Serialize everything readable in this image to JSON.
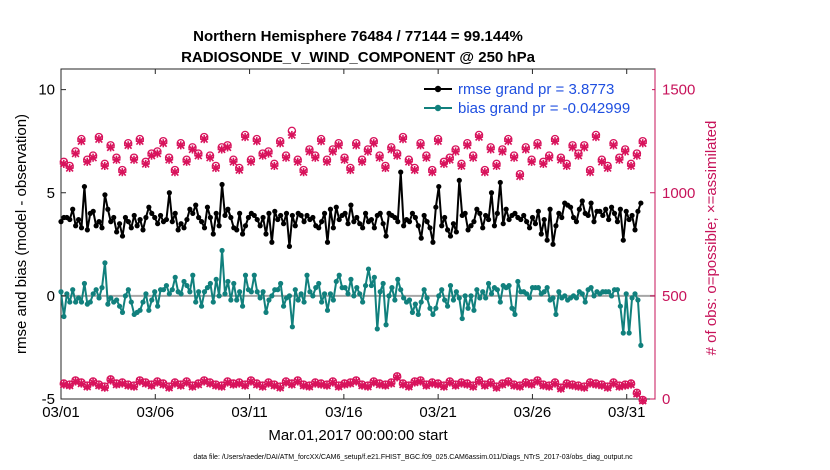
{
  "chart_data": {
    "type": "line",
    "title_line1": "Northern Hemisphere 76484 / 77144 = 99.144%",
    "title_line2": "RADIOSONDE_V_WIND_COMPONENT @ 250 hPa",
    "xlabel": "Mar.01,2017 00:00:00 start",
    "ylabel_left": "rmse and bias (model - observation)",
    "ylabel_right": "# of obs: o=possible; ×=assimilated",
    "footer": "data file: /Users/raeder/DAI/ATM_forcXX/CAM6_setup/f.e21.FHIST_BGC.f09_025.CAM6assim.011/Diags_NTrS_2017-03/obs_diag_output.nc",
    "xlim": [
      0,
      31.5
    ],
    "ylim_left": [
      -5,
      11
    ],
    "ylim_right": [
      0,
      1600
    ],
    "x_tick_values": [
      0,
      5,
      10,
      15,
      20,
      25,
      30
    ],
    "x_tick_labels": [
      "03/01",
      "03/06",
      "03/11",
      "03/16",
      "03/21",
      "03/26",
      "03/31"
    ],
    "y_left_ticks": [
      -5,
      0,
      5,
      10
    ],
    "y_left_tick_labels": [
      "-5",
      "0",
      "5",
      "10"
    ],
    "y_right_ticks": [
      0,
      500,
      1000,
      1500
    ],
    "y_right_tick_labels": [
      "0",
      "500",
      "1000",
      "1500"
    ],
    "colors": {
      "rmse": "#000000",
      "bias": "#11807d",
      "obs": "#d8135c",
      "zero_line": "#a6a6a6",
      "legend_text": "#1f4fe0",
      "right_axis": "#c7135a"
    },
    "legend": [
      {
        "name": "rmse grand pr = 3.8773",
        "series": "rmse"
      },
      {
        "name": "bias grand pr = -0.042999",
        "series": "bias"
      }
    ],
    "rmse": [
      3.6,
      3.8,
      3.8,
      3.7,
      4.2,
      3.4,
      3.7,
      3.3,
      5.3,
      3.2,
      4.0,
      4.1,
      3.4,
      3.6,
      3.3,
      4.9,
      4.2,
      3.6,
      3.8,
      3.1,
      3.5,
      2.9,
      3.8,
      3.6,
      3.3,
      3.9,
      3.4,
      3.7,
      3.2,
      3.8,
      4.3,
      4.0,
      3.8,
      3.5,
      3.9,
      3.6,
      3.7,
      5.0,
      3.6,
      4.0,
      3.2,
      3.5,
      3.3,
      3.7,
      4.2,
      4.0,
      4.4,
      3.8,
      3.6,
      3.3,
      4.3,
      3.8,
      3.0,
      4.0,
      3.4,
      5.4,
      3.9,
      4.2,
      3.8,
      3.3,
      3.2,
      4.0,
      3.0,
      3.4,
      3.8,
      4.0,
      3.9,
      3.7,
      3.4,
      3.8,
      3.0,
      4.0,
      2.6,
      4.1,
      3.7,
      3.9,
      3.5,
      4.0,
      2.4,
      3.9,
      3.4,
      4.0,
      3.9,
      3.6,
      3.9,
      3.7,
      3.8,
      3.4,
      3.3,
      3.6,
      4.0,
      2.6,
      4.2,
      3.3,
      4.3,
      3.7,
      3.9,
      4.0,
      3.5,
      4.4,
      3.6,
      3.8,
      3.5,
      3.3,
      4.0,
      3.6,
      3.7,
      3.3,
      3.9,
      4.0,
      3.5,
      2.9,
      4.0,
      3.9,
      3.8,
      3.6,
      6.0,
      3.4,
      3.7,
      3.6,
      4.0,
      3.8,
      3.4,
      2.8,
      3.9,
      3.6,
      3.3,
      2.6,
      4.3,
      5.3,
      3.4,
      3.8,
      3.2,
      2.9,
      3.5,
      3.1,
      5.6,
      3.9,
      4.0,
      3.2,
      3.4,
      3.6,
      4.2,
      4.0,
      3.3,
      3.9,
      3.7,
      5.0,
      3.4,
      4.0,
      5.5,
      3.5,
      4.2,
      3.7,
      3.9,
      4.0,
      3.8,
      3.7,
      3.9,
      3.6,
      3.3,
      3.8,
      3.5,
      4.1,
      3.0,
      3.7,
      2.7,
      4.2,
      2.5,
      3.4,
      4.0,
      3.8,
      4.5,
      4.4,
      4.3,
      3.8,
      3.6,
      4.2,
      4.6,
      4.0,
      3.9,
      4.5,
      3.6,
      4.1,
      4.1,
      3.9,
      4.2,
      3.7,
      4.3,
      4.0,
      3.6,
      4.2,
      2.7,
      4.1,
      3.7,
      3.9,
      3.2,
      4.1,
      4.5
    ],
    "bias": [
      0.2,
      -1.0,
      0.1,
      -0.3,
      0.3,
      -0.3,
      -0.1,
      -0.3,
      0.6,
      -0.4,
      -0.3,
      0.1,
      0.3,
      -0.1,
      0.4,
      1.6,
      -0.4,
      -0.1,
      -0.3,
      -0.2,
      -0.5,
      -0.8,
      0.0,
      0.3,
      -0.3,
      -0.9,
      -0.8,
      -0.7,
      -0.3,
      0.1,
      -0.7,
      -0.2,
      0.2,
      -0.5,
      0.3,
      0.3,
      0.5,
      0.1,
      0.3,
      0.9,
      0.2,
      0.1,
      0.7,
      0.5,
      0.2,
      1.0,
      -0.3,
      0.2,
      -0.5,
      0.2,
      0.4,
      0.6,
      -0.3,
      0.8,
      0.0,
      2.2,
      0.1,
      0.7,
      -0.2,
      0.6,
      -0.2,
      0.2,
      -0.5,
      1.0,
      0.3,
      0.2,
      1.0,
      0.2,
      -0.1,
      0.2,
      -0.8,
      -0.2,
      0.0,
      0.3,
      0.3,
      0.6,
      -0.5,
      -0.1,
      0.0,
      -1.5,
      0.3,
      -0.2,
      0.1,
      -0.3,
      1.0,
      0.2,
      0.0,
      0.4,
      0.6,
      -0.3,
      0.1,
      -0.7,
      0.1,
      -0.2,
      0.7,
      1.0,
      0.4,
      0.4,
      0.1,
      0.8,
      0.0,
      0.4,
      0.1,
      -0.3,
      0.5,
      1.3,
      0.5,
      0.9,
      -1.6,
      0.2,
      0.6,
      -1.4,
      0.0,
      0.4,
      -0.2,
      0.8,
      0.3,
      -0.1,
      -0.3,
      -0.2,
      -0.8,
      -0.4,
      -0.9,
      -0.3,
      0.3,
      -0.1,
      -0.6,
      -0.9,
      -0.6,
      0.0,
      0.3,
      -0.2,
      -0.5,
      0.5,
      -0.2,
      0.2,
      -0.1,
      -1.1,
      0.0,
      -0.6,
      0.0,
      -0.7,
      0.3,
      -0.1,
      0.2,
      -0.1,
      0.6,
      0.1,
      0.4,
      0.3,
      -0.3,
      0.5,
      0.4,
      0.5,
      -0.6,
      -0.9,
      0.7,
      0.2,
      0.2,
      0.1,
      -0.1,
      0.4,
      0.4,
      0.4,
      0.1,
      0.2,
      0.4,
      -0.2,
      -0.1,
      -0.9,
      0.2,
      -0.1,
      0.0,
      -0.2,
      -0.1,
      0.0,
      -0.1,
      0.2,
      0.1,
      -0.3,
      0.3,
      0.4,
      0.0,
      0.2,
      0.1,
      0.2,
      0.2,
      0.2,
      0.0,
      0.3,
      0.3,
      -0.5,
      -1.8,
      0.1,
      -1.8,
      -0.1,
      0.1,
      -0.2,
      -2.4
    ],
    "obs_possible": [
      1150,
      1130,
      1200,
      1260,
      1160,
      1180,
      1270,
      1140,
      1230,
      1170,
      1110,
      1240,
      1170,
      1260,
      1150,
      1190,
      1200,
      1250,
      1170,
      1110,
      1240,
      1160,
      1220,
      1190,
      1270,
      1180,
      1130,
      1220,
      1230,
      1160,
      1120,
      1280,
      1160,
      1260,
      1190,
      1200,
      1140,
      1250,
      1180,
      1300,
      1160,
      1110,
      1210,
      1180,
      1260,
      1160,
      1210,
      1240,
      1170,
      1120,
      1240,
      1160,
      1210,
      1250,
      1180,
      1130,
      1220,
      1190,
      1270,
      1160,
      1120,
      1240,
      1180,
      1110,
      1260,
      1150,
      1170,
      1210,
      1140,
      1240,
      1180,
      1280,
      1110,
      1220,
      1140,
      1210,
      1260,
      1180,
      1090,
      1220,
      1160,
      1240,
      1150,
      1180,
      1260,
      1170,
      1140,
      1230,
      1190,
      1230,
      1110,
      1280,
      1160,
      1130,
      1240,
      1170,
      1210,
      1140,
      1190,
      1250
    ],
    "obs_assimilated": [
      1140,
      1120,
      1190,
      1250,
      1150,
      1170,
      1260,
      1130,
      1220,
      1160,
      1100,
      1230,
      1160,
      1250,
      1140,
      1180,
      1190,
      1240,
      1160,
      1100,
      1230,
      1150,
      1210,
      1180,
      1260,
      1170,
      1120,
      1210,
      1220,
      1150,
      1110,
      1270,
      1150,
      1250,
      1180,
      1190,
      1130,
      1240,
      1170,
      1280,
      1150,
      1100,
      1200,
      1170,
      1250,
      1150,
      1200,
      1230,
      1160,
      1110,
      1230,
      1150,
      1200,
      1240,
      1170,
      1120,
      1210,
      1180,
      1260,
      1150,
      1110,
      1230,
      1170,
      1100,
      1250,
      1140,
      1160,
      1200,
      1130,
      1230,
      1170,
      1270,
      1100,
      1210,
      1130,
      1200,
      1250,
      1170,
      1080,
      1210,
      1150,
      1230,
      1140,
      1170,
      1250,
      1160,
      1130,
      1220,
      1180,
      1220,
      1100,
      1270,
      1150,
      1120,
      1230,
      1160,
      1200,
      1130,
      1180,
      1240
    ],
    "obs_low_possible": [
      75,
      70,
      90,
      80,
      65,
      85,
      70,
      60,
      95,
      75,
      80,
      70,
      65,
      90,
      80,
      70,
      85,
      75,
      60,
      80,
      70,
      85,
      65,
      75,
      90,
      80,
      70,
      65,
      85,
      75,
      80,
      70,
      90,
      75,
      65,
      80,
      70,
      60,
      85,
      75,
      90,
      70,
      65,
      80,
      75,
      70,
      85,
      65,
      75,
      80,
      90,
      70,
      65,
      85,
      75,
      70,
      80,
      110,
      75,
      65,
      85,
      90,
      70,
      80,
      75,
      65,
      85,
      70,
      80,
      75,
      65,
      90,
      70,
      80,
      60,
      75,
      85,
      70,
      65,
      80,
      75,
      90,
      70,
      65,
      80,
      55,
      75,
      70,
      65,
      60,
      80,
      75,
      70,
      60,
      80,
      65,
      70,
      75,
      30,
      -5
    ],
    "obs_low_assimilated": [
      70,
      65,
      85,
      75,
      60,
      80,
      65,
      55,
      90,
      70,
      75,
      65,
      60,
      85,
      75,
      65,
      80,
      70,
      55,
      75,
      65,
      80,
      60,
      70,
      85,
      75,
      65,
      60,
      80,
      70,
      75,
      65,
      85,
      70,
      60,
      75,
      65,
      55,
      80,
      70,
      85,
      65,
      60,
      75,
      70,
      65,
      80,
      60,
      70,
      75,
      85,
      65,
      60,
      80,
      70,
      65,
      75,
      105,
      70,
      60,
      80,
      85,
      65,
      75,
      70,
      60,
      80,
      65,
      75,
      70,
      60,
      85,
      65,
      75,
      55,
      70,
      80,
      65,
      60,
      75,
      70,
      85,
      65,
      60,
      75,
      50,
      70,
      65,
      60,
      55,
      75,
      70,
      65,
      55,
      75,
      60,
      65,
      70,
      25,
      -8
    ]
  }
}
